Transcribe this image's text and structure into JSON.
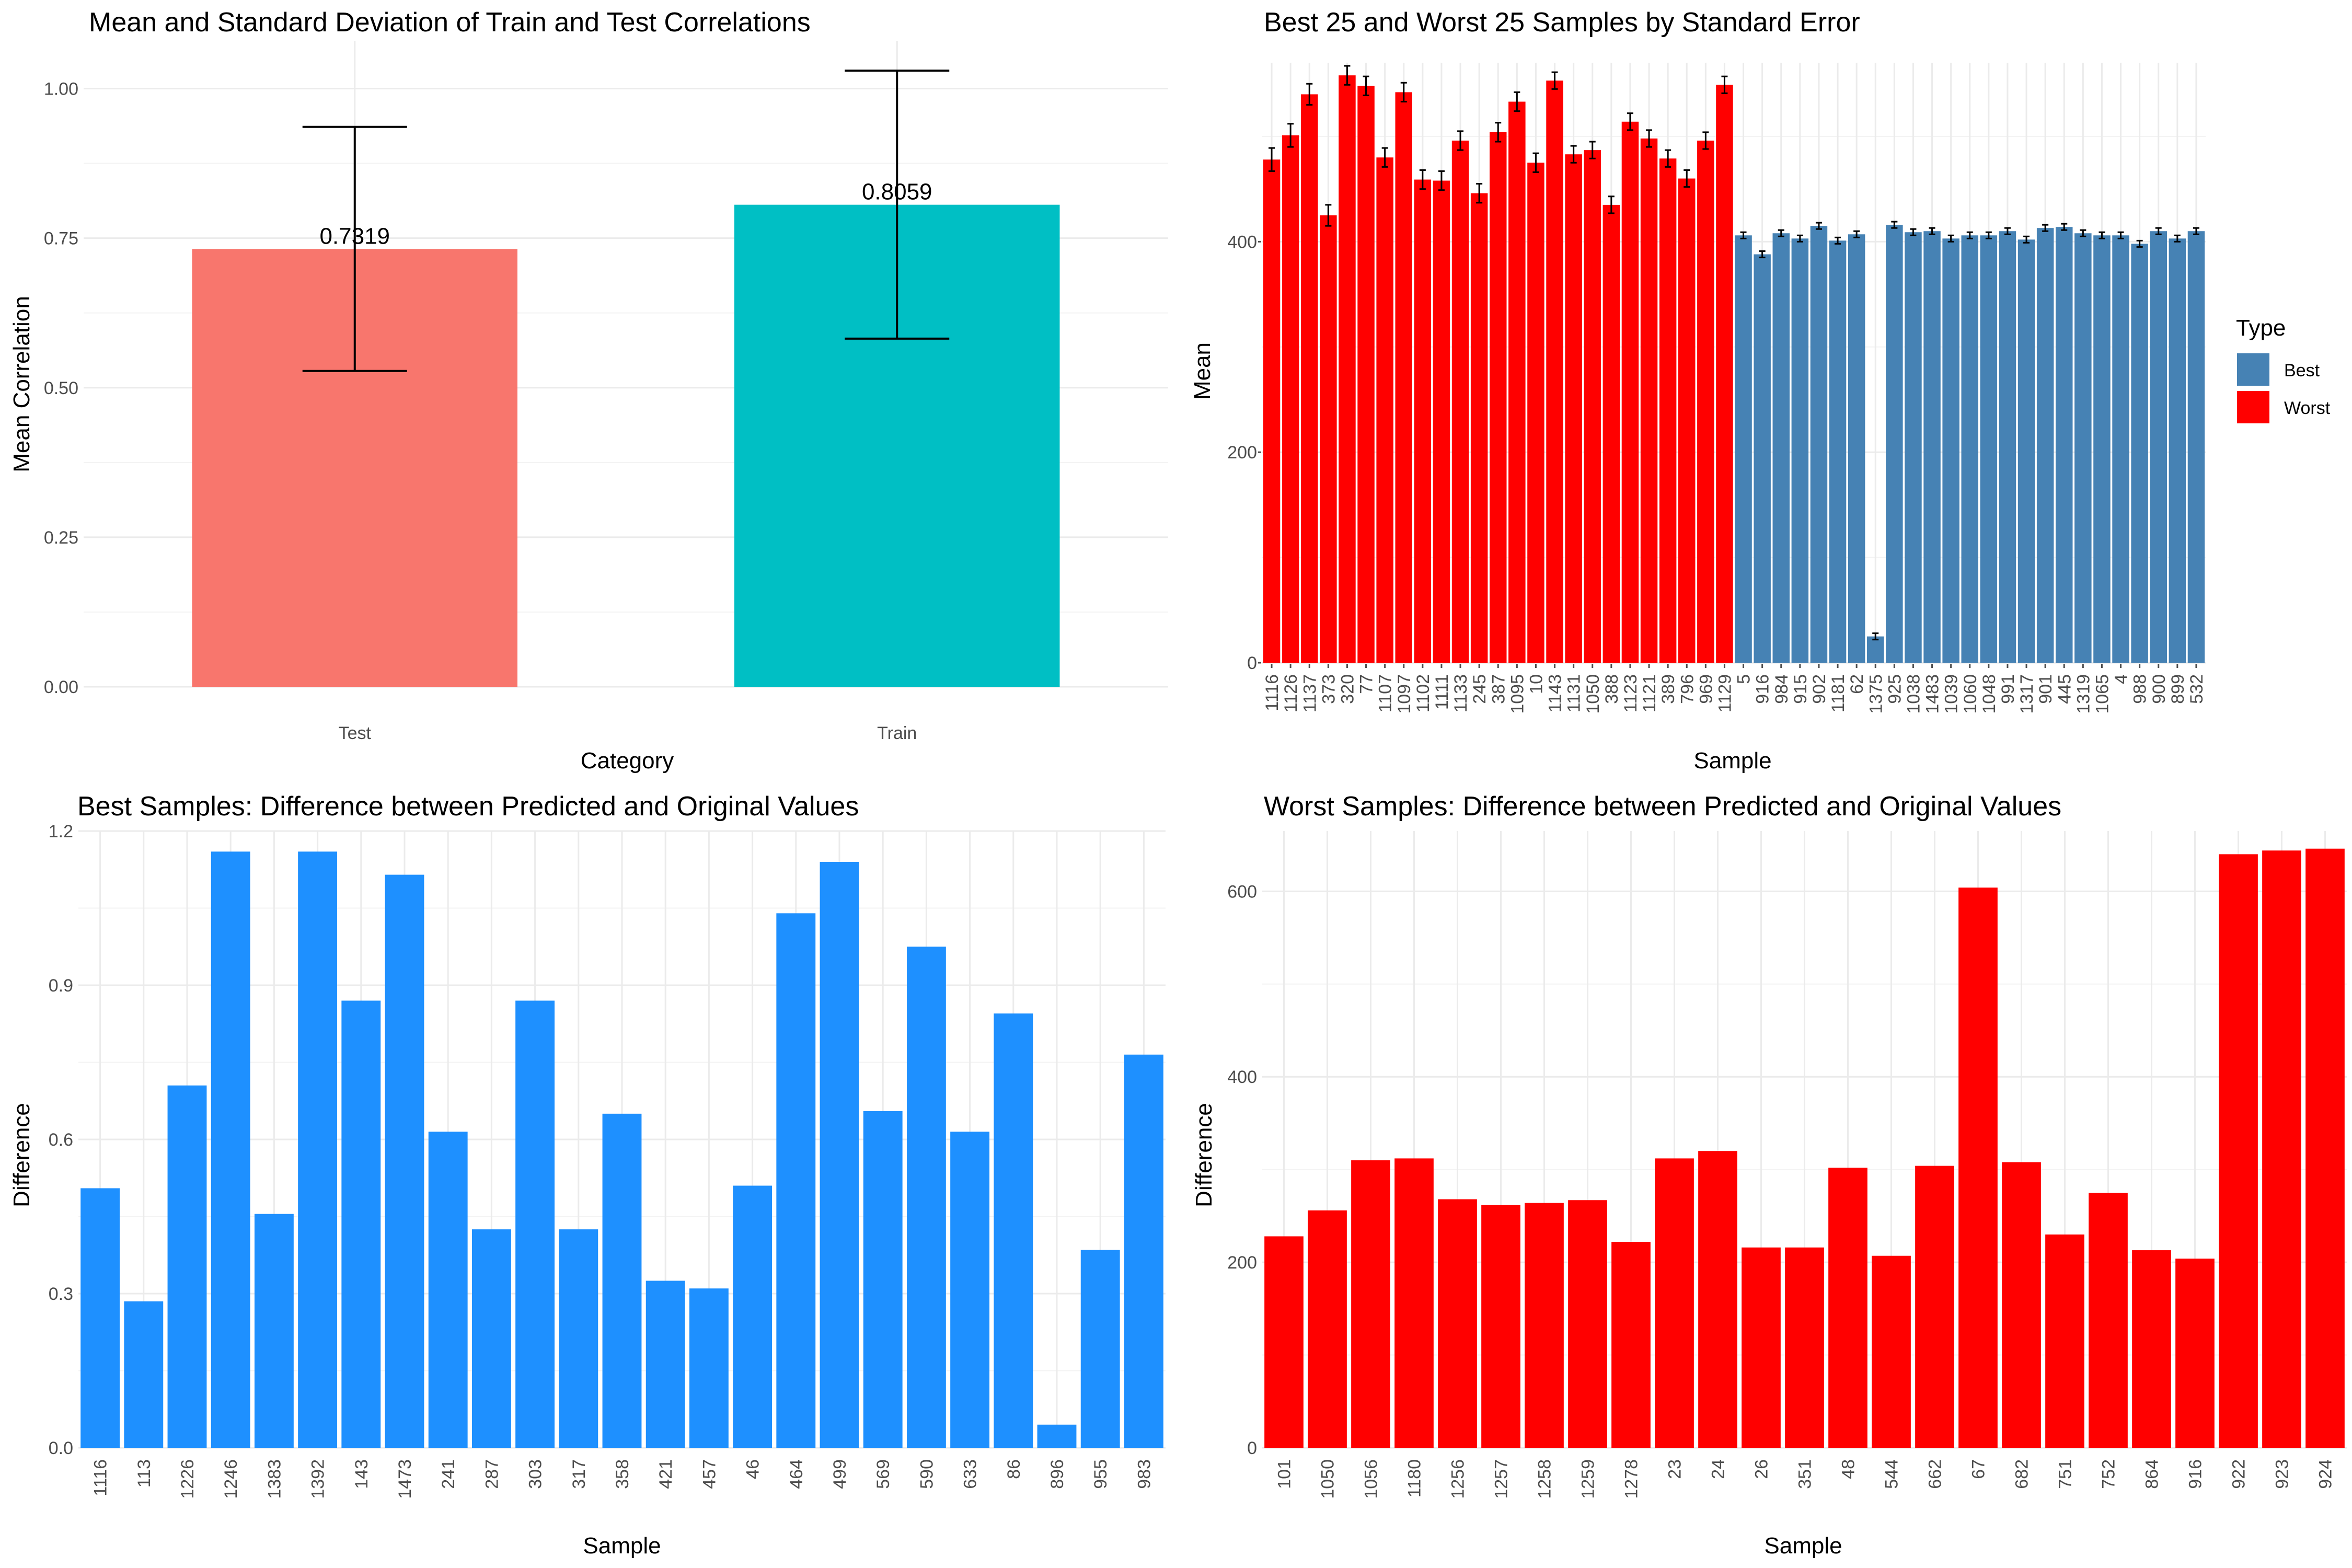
{
  "colors": {
    "test": "#F8766D",
    "train": "#00BFC4",
    "best": "#4682B4",
    "worst": "#FF0000",
    "best_diff": "#1E90FF",
    "worst_diff": "#FF0000"
  },
  "chart_data": [
    {
      "type": "bar",
      "title": "Mean and Standard Deviation of Train and Test Correlations",
      "xlabel": "Category",
      "ylabel": "Mean Correlation",
      "categories": [
        "Test",
        "Train"
      ],
      "values": [
        0.7319,
        0.8059
      ],
      "value_labels": [
        "0.7319",
        "0.8059"
      ],
      "error_low": [
        0.528,
        0.582
      ],
      "error_high": [
        0.936,
        1.03
      ],
      "ylim": [
        0,
        1.08
      ],
      "yticks": [
        0,
        0.25,
        0.5,
        0.75,
        1.0
      ],
      "ytick_labels": [
        "0.00",
        "0.25",
        "0.50",
        "0.75",
        "1.00"
      ],
      "grid": true
    },
    {
      "type": "bar",
      "title": "Best 25 and Worst 25 Samples by Standard Error",
      "xlabel": "Sample",
      "ylabel": "Mean",
      "legend_title": "Type",
      "legend_position": "right",
      "series": [
        {
          "name": "Best",
          "color_key": "best"
        },
        {
          "name": "Worst",
          "color_key": "worst"
        }
      ],
      "categories": [
        "1116",
        "1126",
        "1137",
        "373",
        "320",
        "77",
        "1107",
        "1097",
        "1102",
        "1111",
        "1133",
        "245",
        "387",
        "1095",
        "10",
        "1143",
        "1131",
        "1050",
        "388",
        "1123",
        "1121",
        "389",
        "796",
        "969",
        "1129",
        "5",
        "916",
        "984",
        "915",
        "902",
        "1181",
        "62",
        "1375",
        "925",
        "1038",
        "1483",
        "1039",
        "1060",
        "1048",
        "991",
        "1317",
        "901",
        "445",
        "1319",
        "1065",
        "4",
        "988",
        "900",
        "899",
        "532"
      ],
      "types": [
        "Worst",
        "Worst",
        "Worst",
        "Worst",
        "Worst",
        "Worst",
        "Worst",
        "Worst",
        "Worst",
        "Worst",
        "Worst",
        "Worst",
        "Worst",
        "Worst",
        "Worst",
        "Worst",
        "Worst",
        "Worst",
        "Worst",
        "Worst",
        "Worst",
        "Worst",
        "Worst",
        "Worst",
        "Worst",
        "Best",
        "Best",
        "Best",
        "Best",
        "Best",
        "Best",
        "Best",
        "Best",
        "Best",
        "Best",
        "Best",
        "Best",
        "Best",
        "Best",
        "Best",
        "Best",
        "Best",
        "Best",
        "Best",
        "Best",
        "Best",
        "Best",
        "Best",
        "Best",
        "Best"
      ],
      "values": [
        478,
        501,
        540,
        425,
        558,
        548,
        480,
        542,
        459,
        458,
        496,
        446,
        504,
        533,
        475,
        553,
        483,
        487,
        435,
        514,
        498,
        479,
        460,
        496,
        549,
        406,
        388,
        408,
        403,
        415,
        401,
        407,
        25,
        416,
        409,
        410,
        403,
        406,
        406,
        410,
        402,
        413,
        414,
        408,
        406,
        406,
        398,
        410,
        403,
        410
      ],
      "errors": [
        11,
        11,
        10,
        10,
        9,
        9,
        9,
        9,
        9,
        9,
        9,
        9,
        9,
        9,
        9,
        8,
        8,
        8,
        8,
        8,
        8,
        8,
        8,
        8,
        8,
        3,
        3,
        3,
        3,
        3,
        3,
        3,
        3,
        3,
        3,
        3,
        3,
        3,
        3,
        3,
        3,
        3,
        3,
        3,
        3,
        3,
        3,
        3,
        3,
        3
      ],
      "ylim": [
        0,
        570
      ],
      "yticks": [
        0,
        200,
        400
      ],
      "grid": true
    },
    {
      "type": "bar",
      "title": "Best Samples: Difference between Predicted and Original Values",
      "xlabel": "Sample",
      "ylabel": "Difference",
      "categories": [
        "1116",
        "113",
        "1226",
        "1246",
        "1383",
        "1392",
        "143",
        "1473",
        "241",
        "287",
        "303",
        "317",
        "358",
        "421",
        "457",
        "46",
        "464",
        "499",
        "569",
        "590",
        "633",
        "86",
        "896",
        "955",
        "983"
      ],
      "values": [
        0.505,
        0.285,
        0.705,
        1.16,
        0.455,
        1.16,
        0.87,
        1.115,
        0.615,
        0.425,
        0.87,
        0.425,
        0.65,
        0.325,
        0.31,
        0.51,
        1.04,
        1.14,
        0.655,
        0.975,
        0.615,
        0.845,
        0.045,
        0.385,
        0.765
      ],
      "ylim": [
        0,
        1.2
      ],
      "yticks": [
        0,
        0.3,
        0.6,
        0.9,
        1.2
      ],
      "ytick_labels": [
        "0.0",
        "0.3",
        "0.6",
        "0.9",
        "1.2"
      ],
      "grid": true
    },
    {
      "type": "bar",
      "title": "Worst Samples: Difference between Predicted and Original Values",
      "xlabel": "Sample",
      "ylabel": "Difference",
      "categories": [
        "101",
        "1050",
        "1056",
        "1180",
        "1256",
        "1257",
        "1258",
        "1259",
        "1278",
        "23",
        "24",
        "26",
        "351",
        "48",
        "544",
        "662",
        "67",
        "682",
        "751",
        "752",
        "864",
        "916",
        "922",
        "923",
        "924"
      ],
      "values": [
        228,
        256,
        310,
        312,
        268,
        262,
        264,
        267,
        222,
        312,
        320,
        216,
        216,
        302,
        207,
        304,
        604,
        308,
        230,
        275,
        213,
        204,
        640,
        644,
        646
      ],
      "ylim": [
        0,
        665
      ],
      "yticks": [
        0,
        200,
        400,
        600
      ],
      "grid": true
    }
  ]
}
